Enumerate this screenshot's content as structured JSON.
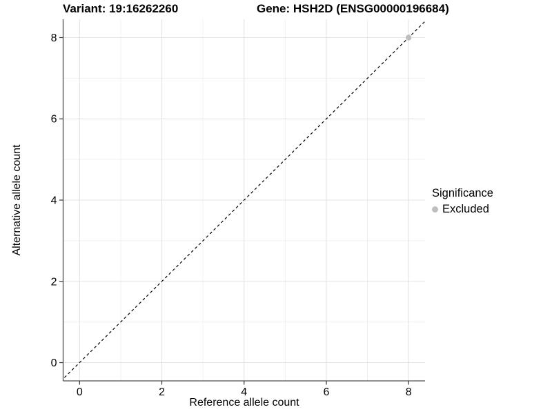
{
  "titles": {
    "variant": "Variant: 19:16262260",
    "gene": "Gene: HSH2D (ENSG00000196684)"
  },
  "legend": {
    "title": "Significance",
    "items": [
      {
        "label": "Excluded",
        "color": "#bebebe",
        "marker": "circle"
      }
    ]
  },
  "colors": {
    "grid_major": "#e3e3e3",
    "grid_minor": "#f0f0f0",
    "axis_line": "#4d4d4d",
    "tick_mark": "#333333",
    "tick_label": "#000000"
  },
  "chart_data": {
    "type": "scatter",
    "xlabel": "Reference allele count",
    "ylabel": "Alternative allele count",
    "xlim": [
      -0.4,
      8.4
    ],
    "ylim": [
      -0.45,
      8.45
    ],
    "x_ticks": [
      0,
      2,
      4,
      6,
      8
    ],
    "y_ticks": [
      0,
      2,
      4,
      6,
      8
    ],
    "x_minor_ticks": [
      1,
      3,
      5,
      7
    ],
    "y_minor_ticks": [
      1,
      3,
      5,
      7
    ],
    "grid": true,
    "legend_position": "right",
    "series": [
      {
        "name": "Excluded",
        "color": "#bebebe",
        "marker": "circle",
        "points": [
          [
            8,
            8
          ]
        ]
      }
    ],
    "reference_line": {
      "type": "identity",
      "slope": 1,
      "intercept": 0,
      "style": "dashed",
      "color": "#000000"
    }
  }
}
